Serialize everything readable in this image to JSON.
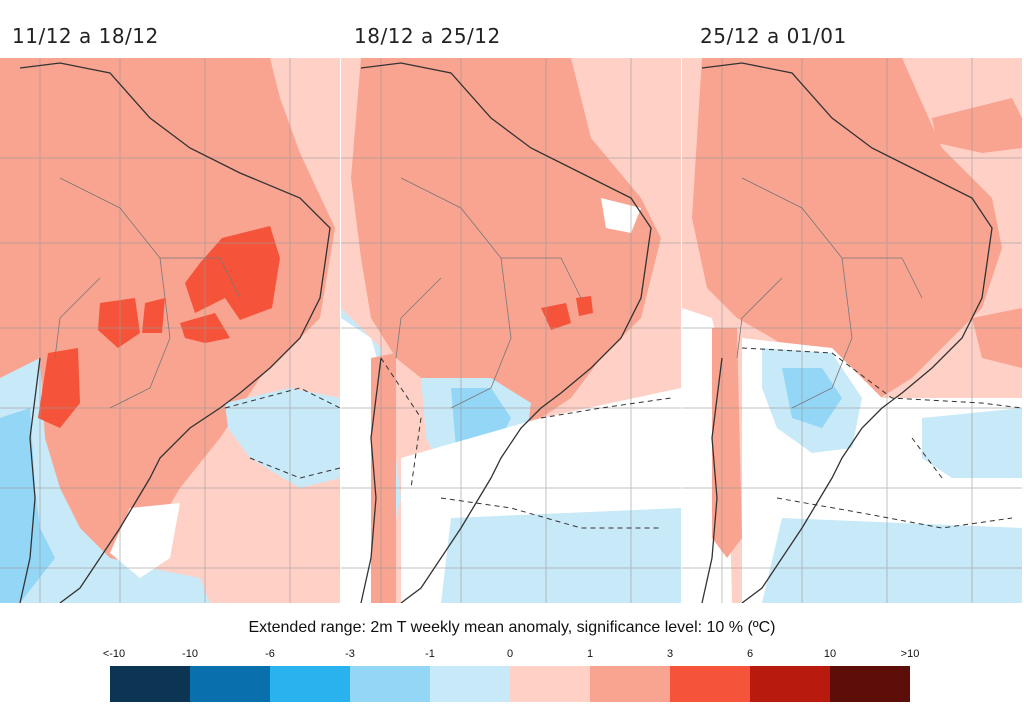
{
  "panels": [
    {
      "title": "11/12 a 18/12"
    },
    {
      "title": "18/12 a 25/12"
    },
    {
      "title": "25/12 a 01/01"
    }
  ],
  "legend": {
    "caption": "Extended range: 2m T weekly mean anomaly, significance level: 10 % (ºC)",
    "ticks": [
      "<-10",
      "-10",
      "-6",
      "-3",
      "-1",
      "0",
      "1",
      "3",
      "6",
      "10",
      ">10"
    ],
    "colors": [
      "#0b3553",
      "#0a6fad",
      "#29b2ee",
      "#93d6f6",
      "#c8e9f8",
      "#ffd0c6",
      "#f9a490",
      "#f5533a",
      "#b91a0e",
      "#5e0e08"
    ]
  },
  "colors": {
    "ocean_neutral": "#ffd0c6",
    "land_warm": "#f9a490",
    "strong_warm": "#f5533a",
    "cool": "#c8e9f8",
    "cooler": "#93d6f6",
    "neutral_white": "#ffffff",
    "border": "#555555",
    "grid": "#9a9a9a"
  }
}
